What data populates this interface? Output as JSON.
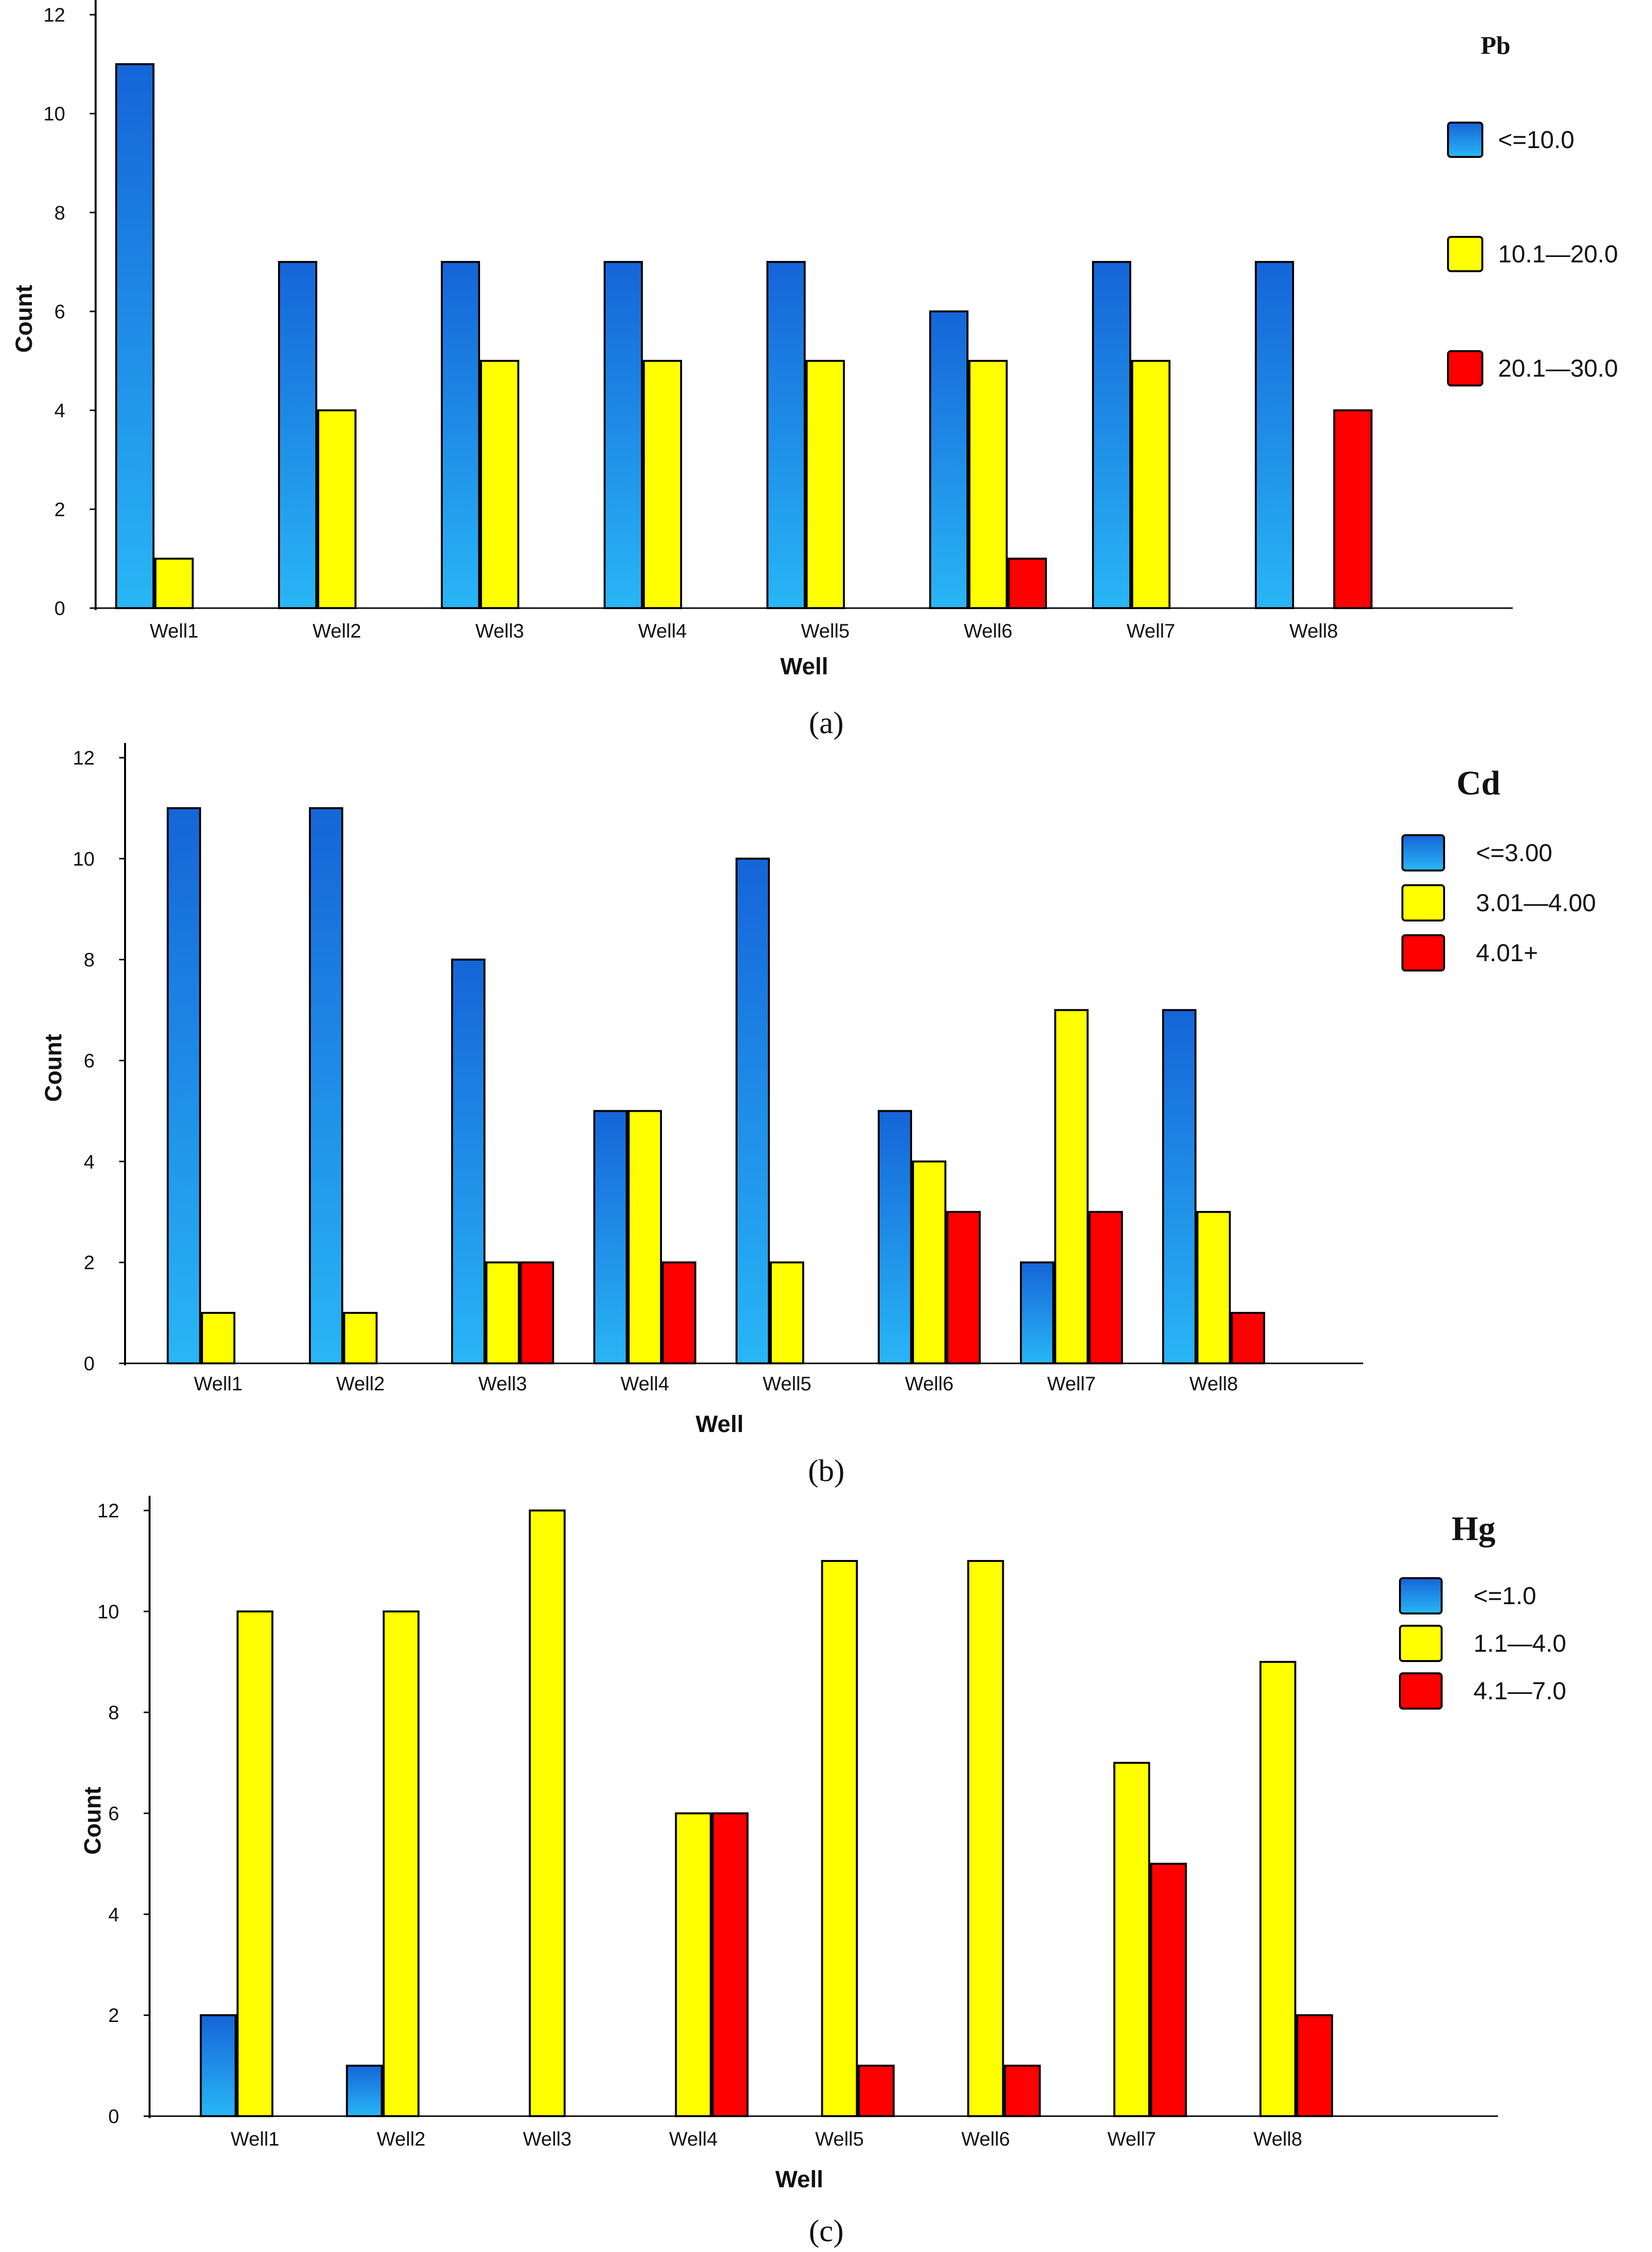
{
  "colors": {
    "blue": "#1e90ff",
    "blue_dark": "#1565d8",
    "blue_light": "#29b6f6",
    "yellow": "#ffff00",
    "red": "#ff0000",
    "axis": "#000000"
  },
  "chart_data": [
    {
      "type": "bar",
      "panel": "(a)",
      "panel_letter": "a",
      "title": "",
      "xlabel": "Well",
      "ylabel": "Count",
      "ylim": [
        0,
        12
      ],
      "yticks": [
        "0",
        "2",
        "4",
        "6",
        "8",
        "10",
        "12"
      ],
      "categories": [
        "Well1",
        "Well2",
        "Well3",
        "Well4",
        "Well5",
        "Well6",
        "Well7",
        "Well8"
      ],
      "legend_title": "Pb",
      "legend_position": "top-right",
      "series": [
        {
          "name": "<=10.0",
          "color": "#1e90ff",
          "values": [
            11,
            7,
            7,
            7,
            7,
            6,
            7,
            7
          ]
        },
        {
          "name": "10.1—20.0",
          "color": "#ffff00",
          "values": [
            1,
            4,
            5,
            5,
            5,
            5,
            5,
            0
          ]
        },
        {
          "name": "20.1—30.0",
          "color": "#ff0000",
          "values": [
            0,
            0,
            0,
            0,
            0,
            1,
            0,
            4
          ]
        }
      ]
    },
    {
      "type": "bar",
      "panel": "(b)",
      "panel_letter": "b",
      "title": "",
      "xlabel": "Well",
      "ylabel": "Count",
      "ylim": [
        0,
        12
      ],
      "yticks": [
        "0",
        "2",
        "4",
        "6",
        "8",
        "10",
        "12"
      ],
      "categories": [
        "Well1",
        "Well2",
        "Well3",
        "Well4",
        "Well5",
        "Well6",
        "Well7",
        "Well8"
      ],
      "legend_title": "Cd",
      "legend_position": "top-right",
      "series": [
        {
          "name": "<=3.00",
          "color": "#1e90ff",
          "values": [
            11,
            11,
            8,
            5,
            10,
            5,
            2,
            7
          ]
        },
        {
          "name": "3.01—4.00",
          "color": "#ffff00",
          "values": [
            1,
            1,
            2,
            5,
            2,
            4,
            7,
            3
          ]
        },
        {
          "name": "4.01+",
          "color": "#ff0000",
          "values": [
            0,
            0,
            2,
            2,
            0,
            3,
            3,
            1
          ]
        }
      ]
    },
    {
      "type": "bar",
      "panel": "(c)",
      "panel_letter": "c",
      "title": "",
      "xlabel": "Well",
      "ylabel": "Count",
      "ylim": [
        0,
        12
      ],
      "yticks": [
        "0",
        "2",
        "4",
        "6",
        "8",
        "10",
        "12"
      ],
      "categories": [
        "Well1",
        "Well2",
        "Well3",
        "Well4",
        "Well5",
        "Well6",
        "Well7",
        "Well8"
      ],
      "legend_title": "Hg",
      "legend_position": "top-right",
      "series": [
        {
          "name": "<=1.0",
          "color": "#1e90ff",
          "values": [
            2,
            1,
            0,
            0,
            0,
            0,
            0,
            0
          ]
        },
        {
          "name": "1.1—4.0",
          "color": "#ffff00",
          "values": [
            10,
            10,
            12,
            6,
            11,
            11,
            7,
            9
          ]
        },
        {
          "name": "4.1—7.0",
          "color": "#ff0000",
          "values": [
            0,
            0,
            0,
            6,
            1,
            1,
            5,
            2
          ]
        }
      ]
    }
  ]
}
